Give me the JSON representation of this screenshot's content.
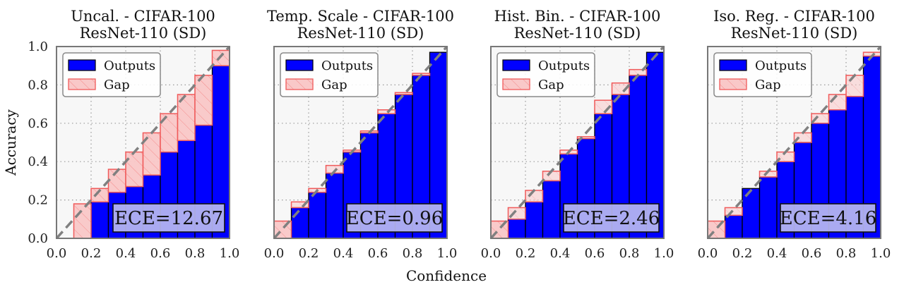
{
  "figure": {
    "xlabel": "Confidence",
    "ylabel": "Accuracy",
    "legend": {
      "outputs": "Outputs",
      "gap": "Gap",
      "placement": "top-left"
    },
    "colors": {
      "outputs_fill": "#0000ff",
      "outputs_edge": "#000000",
      "gap_fill": "#f9c8c8",
      "gap_edge": "#f05a5a",
      "diagonal": "#808080",
      "background": "#f7f7f7",
      "ece_box": "#b8b8f0"
    }
  },
  "chart_data": [
    {
      "type": "bar",
      "title": "Uncal. - CIFAR-100",
      "subtitle": "ResNet-110 (SD)",
      "ece_label": "ECE=12.67",
      "xlim": [
        0,
        1
      ],
      "ylim": [
        0,
        1
      ],
      "xticks": [
        "0.0",
        "0.2",
        "0.4",
        "0.6",
        "0.8",
        "1.0"
      ],
      "yticks": [
        "0.0",
        "0.2",
        "0.4",
        "0.6",
        "0.8",
        "1.0"
      ],
      "bins": [
        0.05,
        0.15,
        0.25,
        0.35,
        0.45,
        0.55,
        0.65,
        0.75,
        0.85,
        0.95
      ],
      "outputs": [
        0.0,
        0.0,
        0.19,
        0.24,
        0.27,
        0.33,
        0.45,
        0.51,
        0.59,
        0.9
      ],
      "gap_top": [
        0.0,
        0.18,
        0.26,
        0.36,
        0.45,
        0.55,
        0.65,
        0.75,
        0.85,
        0.98
      ]
    },
    {
      "type": "bar",
      "title": "Temp. Scale - CIFAR-100",
      "subtitle": "ResNet-110 (SD)",
      "ece_label": "ECE=0.96",
      "xlim": [
        0,
        1
      ],
      "ylim": [
        0,
        1
      ],
      "xticks": [
        "0.0",
        "0.2",
        "0.4",
        "0.6",
        "0.8",
        "1.0"
      ],
      "yticks": [
        "0.0",
        "0.2",
        "0.4",
        "0.6",
        "0.8",
        "1.0"
      ],
      "bins": [
        0.05,
        0.15,
        0.25,
        0.35,
        0.45,
        0.55,
        0.65,
        0.75,
        0.85,
        0.95
      ],
      "outputs": [
        0.0,
        0.16,
        0.24,
        0.34,
        0.45,
        0.55,
        0.65,
        0.75,
        0.85,
        0.97
      ],
      "gap_top": [
        0.09,
        0.19,
        0.26,
        0.38,
        0.46,
        0.56,
        0.67,
        0.76,
        0.86,
        0.97
      ]
    },
    {
      "type": "bar",
      "title": "Hist. Bin. - CIFAR-100",
      "subtitle": "ResNet-110 (SD)",
      "ece_label": "ECE=2.46",
      "xlim": [
        0,
        1
      ],
      "ylim": [
        0,
        1
      ],
      "xticks": [
        "0.0",
        "0.2",
        "0.4",
        "0.6",
        "0.8",
        "1.0"
      ],
      "yticks": [
        "0.0",
        "0.2",
        "0.4",
        "0.6",
        "0.8",
        "1.0"
      ],
      "bins": [
        0.05,
        0.15,
        0.25,
        0.35,
        0.45,
        0.55,
        0.65,
        0.75,
        0.85,
        0.95
      ],
      "outputs": [
        0.0,
        0.1,
        0.19,
        0.3,
        0.44,
        0.52,
        0.65,
        0.75,
        0.85,
        0.97
      ],
      "gap_top": [
        0.09,
        0.16,
        0.25,
        0.35,
        0.46,
        0.53,
        0.72,
        0.81,
        0.88,
        0.97
      ]
    },
    {
      "type": "bar",
      "title": "Iso. Reg. - CIFAR-100",
      "subtitle": "ResNet-110 (SD)",
      "ece_label": "ECE=4.16",
      "xlim": [
        0,
        1
      ],
      "ylim": [
        0,
        1
      ],
      "xticks": [
        "0.0",
        "0.2",
        "0.4",
        "0.6",
        "0.8",
        "1.0"
      ],
      "yticks": [
        "0.0",
        "0.2",
        "0.4",
        "0.6",
        "0.8",
        "1.0"
      ],
      "bins": [
        0.05,
        0.15,
        0.25,
        0.35,
        0.45,
        0.55,
        0.65,
        0.75,
        0.85,
        0.95
      ],
      "outputs": [
        0.0,
        0.12,
        0.26,
        0.32,
        0.4,
        0.5,
        0.6,
        0.67,
        0.74,
        0.95
      ],
      "gap_top": [
        0.09,
        0.16,
        0.26,
        0.35,
        0.45,
        0.55,
        0.65,
        0.75,
        0.85,
        0.97
      ]
    }
  ]
}
